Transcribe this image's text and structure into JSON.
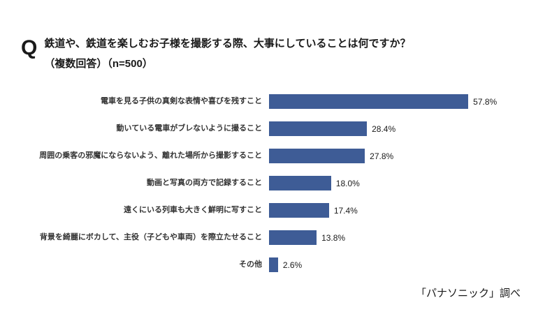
{
  "title": {
    "q": "Q",
    "line1": "鉄道や、鉄道を楽しむお子様を撮影する際、大事にしていることは何ですか？",
    "line2": "（複数回答）（n=500）"
  },
  "footer": {
    "source": "「パナソニック」調べ"
  },
  "chart_data": {
    "type": "bar",
    "orientation": "horizontal",
    "title": "鉄道や、鉄道を楽しむお子様を撮影する際、大事にしていることは何ですか？（複数回答）（n=500）",
    "categories": [
      "電車を見る子供の真剣な表情や喜びを残すこと",
      "動いている電車がブレないように撮ること",
      "周囲の乗客の邪魔にならないよう、離れた場所から撮影すること",
      "動画と写真の両方で記録すること",
      "遠くにいる列車も大きく鮮明に写すこと",
      "背景を綺麗にボカして、主役（子どもや車両）を際立たせること",
      "その他"
    ],
    "values": [
      57.8,
      28.4,
      27.8,
      18.0,
      17.4,
      13.8,
      2.6
    ],
    "value_labels": [
      "57.8%",
      "28.4%",
      "27.8%",
      "18.0%",
      "17.4%",
      "13.8%",
      "2.6%"
    ],
    "value_suffix": "%",
    "xlim": [
      0,
      60
    ],
    "bar_color": "#3e5c96",
    "grid": false,
    "legend": false
  }
}
